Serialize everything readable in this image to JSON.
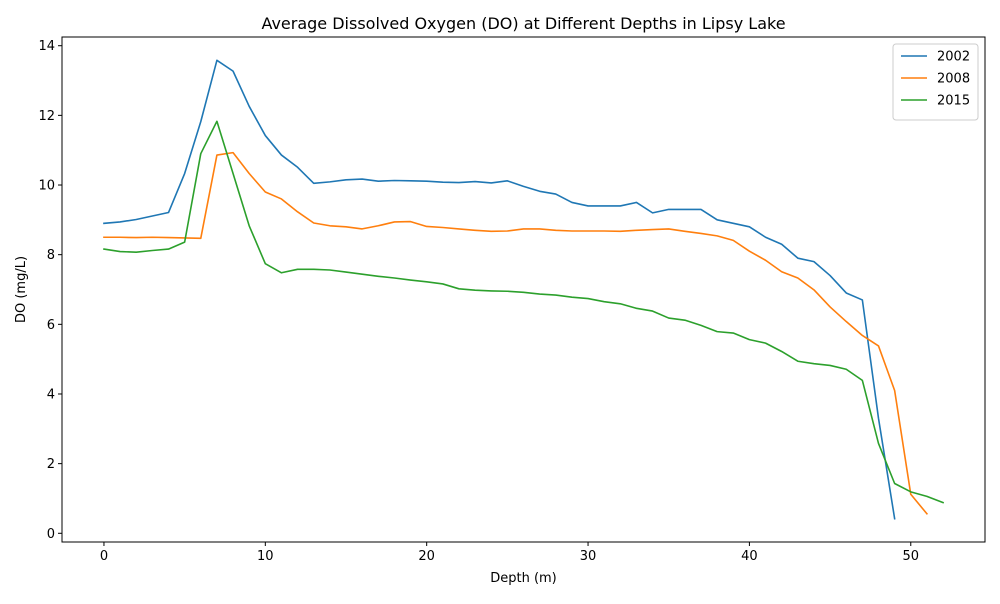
{
  "chart_data": {
    "type": "line",
    "title": "Average Dissolved Oxygen (DO) at Different Depths in Lipsy Lake",
    "xlabel": "Depth (m)",
    "ylabel": "DO (mg/L)",
    "xlim": [
      -2.6,
      54.6
    ],
    "ylim": [
      -0.25,
      14.25
    ],
    "xticks": [
      0,
      10,
      20,
      30,
      40,
      50
    ],
    "yticks": [
      0,
      2,
      4,
      6,
      8,
      10,
      12,
      14
    ],
    "grid": false,
    "legend_position": "upper right",
    "series": [
      {
        "name": "2002",
        "color": "#1f77b4",
        "x": [
          0,
          1,
          2,
          3,
          4,
          5,
          6,
          7,
          8,
          9,
          10,
          11,
          12,
          13,
          14,
          15,
          16,
          17,
          18,
          19,
          20,
          21,
          22,
          23,
          24,
          25,
          26,
          27,
          28,
          29,
          30,
          31,
          32,
          33,
          34,
          35,
          36,
          37,
          38,
          39,
          40,
          41,
          42,
          43,
          44,
          45,
          46,
          47,
          48,
          49
        ],
        "y": [
          8.9,
          8.94,
          9.01,
          9.11,
          9.21,
          10.33,
          11.82,
          13.58,
          13.27,
          12.26,
          11.42,
          10.86,
          10.51,
          10.05,
          10.09,
          10.15,
          10.17,
          10.11,
          10.13,
          10.12,
          10.11,
          10.08,
          10.07,
          10.1,
          10.06,
          10.12,
          9.96,
          9.82,
          9.74,
          9.5,
          9.4,
          9.4,
          9.4,
          9.5,
          9.2,
          9.3,
          9.3,
          9.3,
          9.0,
          8.9,
          8.8,
          8.5,
          8.3,
          7.9,
          7.8,
          7.4,
          6.9,
          6.7,
          3.3,
          0.42
        ]
      },
      {
        "name": "2008",
        "color": "#ff7f0e",
        "x": [
          0,
          1,
          2,
          3,
          4,
          5,
          6,
          7,
          8,
          9,
          10,
          11,
          12,
          13,
          14,
          15,
          16,
          17,
          18,
          19,
          20,
          21,
          22,
          23,
          24,
          25,
          26,
          27,
          28,
          29,
          30,
          31,
          32,
          33,
          34,
          35,
          36,
          37,
          38,
          39,
          40,
          41,
          42,
          43,
          44,
          45,
          46,
          47,
          48,
          49,
          50,
          51
        ],
        "y": [
          8.5,
          8.5,
          8.49,
          8.5,
          8.49,
          8.48,
          8.47,
          10.86,
          10.93,
          10.33,
          9.8,
          9.6,
          9.23,
          8.91,
          8.83,
          8.8,
          8.74,
          8.83,
          8.94,
          8.95,
          8.81,
          8.78,
          8.74,
          8.7,
          8.67,
          8.68,
          8.74,
          8.74,
          8.7,
          8.68,
          8.68,
          8.68,
          8.67,
          8.7,
          8.72,
          8.74,
          8.67,
          8.61,
          8.54,
          8.41,
          8.1,
          7.84,
          7.51,
          7.33,
          6.99,
          6.5,
          6.08,
          5.68,
          5.38,
          4.1,
          1.12,
          0.56
        ]
      },
      {
        "name": "2015",
        "color": "#2ca02c",
        "x": [
          0,
          1,
          2,
          3,
          4,
          5,
          6,
          7,
          8,
          9,
          10,
          11,
          12,
          13,
          14,
          15,
          16,
          17,
          18,
          19,
          20,
          21,
          22,
          23,
          24,
          25,
          26,
          27,
          28,
          29,
          30,
          31,
          32,
          33,
          34,
          35,
          36,
          37,
          38,
          39,
          40,
          41,
          42,
          43,
          44,
          45,
          46,
          47,
          48,
          49,
          50,
          51,
          52
        ],
        "y": [
          8.16,
          8.09,
          8.07,
          8.12,
          8.16,
          8.36,
          10.9,
          11.83,
          10.33,
          8.83,
          7.74,
          7.48,
          7.58,
          7.58,
          7.56,
          7.5,
          7.44,
          7.38,
          7.33,
          7.27,
          7.22,
          7.16,
          7.02,
          6.98,
          6.96,
          6.95,
          6.92,
          6.87,
          6.84,
          6.78,
          6.74,
          6.65,
          6.59,
          6.46,
          6.38,
          6.18,
          6.12,
          5.97,
          5.79,
          5.75,
          5.56,
          5.46,
          5.22,
          4.94,
          4.87,
          4.82,
          4.71,
          4.39,
          2.58,
          1.43,
          1.19,
          1.06,
          0.88
        ]
      }
    ]
  }
}
